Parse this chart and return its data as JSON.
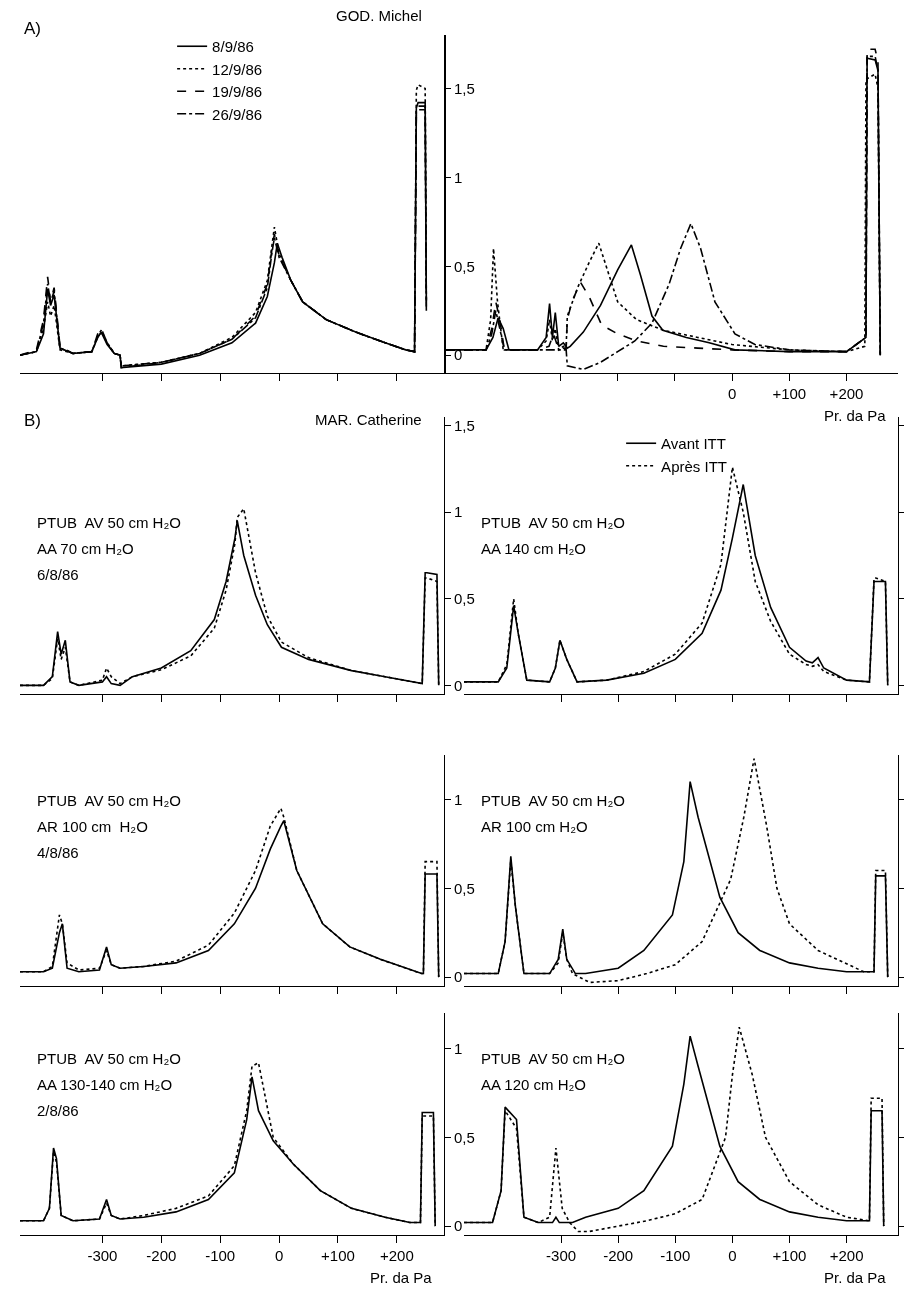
{
  "chart_data": [
    {
      "type": "line",
      "title": "A)",
      "subtitle": "GOD. Michel",
      "legend": "top",
      "tick_labels": "y",
      "xlim": [
        -440,
        280
      ],
      "ylim": [
        -0.1,
        1.8
      ],
      "xticks": [
        {
          "value": -300,
          "label": null
        },
        {
          "value": -200,
          "label": null
        },
        {
          "value": -100,
          "label": null
        },
        {
          "value": 0,
          "label": null
        },
        {
          "value": 100,
          "label": null
        },
        {
          "value": 200,
          "label": null
        }
      ],
      "yticks": [
        0,
        {
          "value": 0.5,
          "label": "0,5"
        },
        1,
        {
          "value": 1.5,
          "label": "1,5"
        }
      ],
      "series": [
        {
          "name": "8/9/86",
          "color": "#000000",
          "line_style": "solid",
          "x": [
            -440,
            -412,
            -400,
            -393,
            -388,
            -382,
            -372,
            -350,
            -318,
            -308,
            -302,
            -292,
            -280,
            -270,
            -268,
            -200,
            -135,
            -80,
            -40,
            -20,
            -8,
            -3,
            5,
            20,
            40,
            80,
            130,
            180,
            215,
            230,
            233,
            236,
            248,
            250
          ],
          "values": [
            0,
            0.02,
            0.12,
            0.37,
            0.28,
            0.34,
            0.04,
            0.01,
            0.02,
            0.1,
            0.13,
            0.06,
            0.01,
            0,
            -0.07,
            -0.05,
            0,
            0.07,
            0.18,
            0.33,
            0.52,
            0.63,
            0.55,
            0.42,
            0.3,
            0.2,
            0.13,
            0.07,
            0.03,
            0.02,
            1.39,
            1.42,
            1.42,
            0.3
          ]
        },
        {
          "name": "12/9/86",
          "color": "#000000",
          "line_style": "dotted",
          "x": [
            -440,
            -412,
            -400,
            -393,
            -388,
            -382,
            -372,
            -350,
            -318,
            -308,
            -302,
            -292,
            -280,
            -270,
            -268,
            -200,
            -135,
            -80,
            -40,
            -20,
            -12,
            -8,
            0,
            20,
            40,
            80,
            130,
            180,
            215,
            230,
            233,
            236,
            248,
            250
          ],
          "values": [
            0,
            0.02,
            0.15,
            0.3,
            0.22,
            0.28,
            0.03,
            0.01,
            0.02,
            0.11,
            0.14,
            0.07,
            0.01,
            0,
            -0.06,
            -0.04,
            0.01,
            0.1,
            0.24,
            0.42,
            0.62,
            0.72,
            0.57,
            0.42,
            0.3,
            0.2,
            0.13,
            0.07,
            0.03,
            0.02,
            1.49,
            1.52,
            1.5,
            0.3
          ]
        },
        {
          "name": "19/9/86",
          "color": "#000000",
          "line_style": "dashed",
          "x": [
            -440,
            -412,
            -400,
            -393,
            -388,
            -382,
            -372,
            -350,
            -318,
            -308,
            -302,
            -292,
            -280,
            -270,
            -268,
            -200,
            -135,
            -80,
            -40,
            -20,
            -12,
            -8,
            0,
            20,
            40,
            80,
            130,
            180,
            215,
            230,
            233,
            236,
            248,
            250
          ],
          "values": [
            0,
            0.03,
            0.2,
            0.44,
            0.3,
            0.38,
            0.05,
            0.01,
            0.02,
            0.12,
            0.15,
            0.07,
            0.01,
            0,
            -0.07,
            -0.04,
            0.01,
            0.09,
            0.22,
            0.4,
            0.6,
            0.68,
            0.56,
            0.42,
            0.3,
            0.2,
            0.13,
            0.07,
            0.03,
            0.02,
            1.38,
            1.4,
            1.4,
            0.25
          ]
        },
        {
          "name": "26/9/86",
          "color": "#000000",
          "line_style": "dashdot",
          "x": [
            -440,
            -412,
            -400,
            -393,
            -388,
            -382,
            -372,
            -350,
            -318,
            -308,
            -302,
            -292,
            -280,
            -270,
            -268,
            -200,
            -135,
            -80,
            -40,
            -20,
            -12,
            -8,
            0,
            20,
            40,
            80,
            130,
            180,
            215,
            230,
            233,
            236,
            248,
            250
          ],
          "values": [
            0,
            0.02,
            0.18,
            0.4,
            0.3,
            0.36,
            0.04,
            0.01,
            0.02,
            0.1,
            0.13,
            0.07,
            0.01,
            0,
            -0.06,
            -0.04,
            0.01,
            0.09,
            0.21,
            0.38,
            0.58,
            0.66,
            0.55,
            0.42,
            0.3,
            0.2,
            0.13,
            0.07,
            0.03,
            0.02,
            1.37,
            1.38,
            1.38,
            0.25
          ]
        }
      ]
    },
    {
      "type": "line",
      "xlabel": "Pr. da Pa",
      "tick_labels": "x",
      "xlim": [
        -500,
        290
      ],
      "ylim": [
        -0.1,
        1.8
      ],
      "xticks": [
        {
          "value": -300,
          "label": null
        },
        {
          "value": -200,
          "label": null
        },
        {
          "value": -100,
          "label": null
        },
        0,
        {
          "value": 100,
          "label": "+100"
        },
        {
          "value": 200,
          "label": "+200"
        }
      ],
      "series": [
        {
          "color": "#000000",
          "line_style": "solid",
          "x": [
            -500,
            -430,
            -418,
            -409,
            -400,
            -390,
            -340,
            -325,
            -319,
            -314,
            -309,
            -303,
            -295,
            -288,
            -283,
            -260,
            -230,
            -200,
            -176,
            -160,
            -140,
            -121,
            -80,
            -40,
            5,
            100,
            200,
            234,
            236,
            250,
            255,
            259
          ],
          "values": [
            0.03,
            0.03,
            0.1,
            0.21,
            0.15,
            0.03,
            0.03,
            0.1,
            0.29,
            0.1,
            0.24,
            0.05,
            0.07,
            0.04,
            0.05,
            0.13,
            0.28,
            0.48,
            0.62,
            0.45,
            0.22,
            0.14,
            0.1,
            0.07,
            0.03,
            0.02,
            0.02,
            0.1,
            1.67,
            1.66,
            1.6,
            0
          ]
        },
        {
          "color": "#000000",
          "line_style": "dotted",
          "x": [
            -500,
            -430,
            -422,
            -417,
            -410,
            -400,
            -340,
            -325,
            -319,
            -314,
            -309,
            -303,
            -295,
            -290,
            -288,
            -270,
            -250,
            -233,
            -220,
            -200,
            -167,
            -120,
            -60,
            0,
            100,
            200,
            232,
            234,
            250,
            255,
            259
          ],
          "values": [
            0.03,
            0.03,
            0.2,
            0.6,
            0.3,
            0.03,
            0.03,
            0.08,
            0.2,
            0.08,
            0.15,
            0.03,
            0.05,
            0.05,
            0.22,
            0.38,
            0.52,
            0.63,
            0.5,
            0.3,
            0.2,
            0.14,
            0.1,
            0.06,
            0.03,
            0.02,
            0.05,
            1.55,
            1.58,
            1.5,
            0
          ]
        },
        {
          "color": "#000000",
          "line_style": "dashed",
          "x": [
            -500,
            -430,
            -420,
            -413,
            -406,
            -398,
            -340,
            -320,
            -312,
            -304,
            -290,
            -288,
            -280,
            -265,
            -250,
            -228,
            -200,
            -167,
            -120,
            -60,
            0,
            100,
            200,
            234,
            236,
            250,
            255,
            259
          ],
          "values": [
            0.03,
            0.03,
            0.15,
            0.3,
            0.2,
            0.03,
            0.03,
            0.05,
            0.12,
            0.04,
            0.04,
            0.2,
            0.3,
            0.41,
            0.33,
            0.17,
            0.12,
            0.08,
            0.05,
            0.04,
            0.03,
            0.02,
            0.02,
            0.1,
            1.72,
            1.72,
            1.65,
            0
          ]
        },
        {
          "color": "#000000",
          "line_style": "dashdot",
          "x": [
            -500,
            -430,
            -420,
            -413,
            -406,
            -398,
            -340,
            -290,
            -288,
            -260,
            -230,
            -200,
            -170,
            -140,
            -110,
            -90,
            -72,
            -55,
            -30,
            5,
            40,
            100,
            200,
            234,
            236,
            250,
            255,
            259
          ],
          "values": [
            0.03,
            0.03,
            0.12,
            0.25,
            0.15,
            0.03,
            0.03,
            0.03,
            -0.06,
            -0.08,
            -0.04,
            0.02,
            0.08,
            0.18,
            0.4,
            0.6,
            0.74,
            0.6,
            0.3,
            0.12,
            0.06,
            0.03,
            0.02,
            0.1,
            1.68,
            1.68,
            1.6,
            0
          ]
        }
      ]
    },
    {
      "type": "line",
      "title": "B)",
      "subtitle": "MAR. Catherine",
      "tick_labels": "y",
      "xlim": [
        -440,
        280
      ],
      "ylim": [
        -0.05,
        1.55
      ],
      "annotations": [
        "PTUB  AV 50 cm H₂O",
        "AA 70 cm H₂O",
        "6/8/86"
      ],
      "xticks": [
        {
          "value": -300,
          "label": null
        },
        {
          "value": -200,
          "label": null
        },
        {
          "value": -100,
          "label": null
        },
        {
          "value": 0,
          "label": null
        },
        {
          "value": 100,
          "label": null
        },
        {
          "value": 200,
          "label": null
        }
      ],
      "yticks": [
        0,
        {
          "value": 0.5,
          "label": "0,5"
        },
        1,
        {
          "value": 1.5,
          "label": "1,5"
        }
      ],
      "series": [
        {
          "color": "#000000",
          "line_style": "solid",
          "x": [
            -440,
            -400,
            -385,
            -376,
            -370,
            -363,
            -355,
            -340,
            -300,
            -293,
            -285,
            -270,
            -249,
            -200,
            -150,
            -110,
            -90,
            -75,
            -71,
            -60,
            -40,
            -20,
            4,
            50,
            123,
            180,
            243,
            248,
            251,
            268,
            271
          ],
          "values": [
            0,
            0,
            0.05,
            0.31,
            0.18,
            0.26,
            0.02,
            0,
            0.02,
            0.05,
            0.01,
            0,
            0.05,
            0.1,
            0.2,
            0.38,
            0.6,
            0.85,
            0.95,
            0.75,
            0.52,
            0.35,
            0.22,
            0.15,
            0.085,
            0.05,
            0.01,
            0.65,
            0.65,
            0.64,
            0
          ]
        },
        {
          "color": "#000000",
          "line_style": "dotted",
          "x": [
            -440,
            -400,
            -385,
            -376,
            -370,
            -363,
            -355,
            -340,
            -300,
            -293,
            -285,
            -270,
            -249,
            -200,
            -150,
            -110,
            -90,
            -75,
            -71,
            -60,
            -40,
            -20,
            4,
            50,
            123,
            180,
            243,
            248,
            251,
            268,
            271
          ],
          "values": [
            0,
            0,
            0.04,
            0.27,
            0.15,
            0.22,
            0.02,
            0,
            0.03,
            0.1,
            0.05,
            0.01,
            0.05,
            0.09,
            0.17,
            0.33,
            0.55,
            0.82,
            0.97,
            1.02,
            0.65,
            0.4,
            0.25,
            0.16,
            0.085,
            0.05,
            0.01,
            0.62,
            0.62,
            0.6,
            0
          ]
        }
      ]
    },
    {
      "type": "line",
      "legend": "top",
      "tick_labels": false,
      "xlim": [
        -470,
        290
      ],
      "ylim": [
        -0.05,
        1.55
      ],
      "annotations": [
        "PTUB  AV 50 cm H₂O",
        "AA 140 cm H₂O"
      ],
      "xticks": [
        {
          "value": -300,
          "label": null
        },
        {
          "value": -200,
          "label": null
        },
        {
          "value": -100,
          "label": null
        },
        {
          "value": 0,
          "label": null
        },
        {
          "value": 100,
          "label": null
        },
        {
          "value": 200,
          "label": null
        }
      ],
      "yticks": [
        {
          "value": 0,
          "label": null
        },
        {
          "value": 0.5,
          "label": null
        },
        {
          "value": 1,
          "label": null
        },
        {
          "value": 1.5,
          "label": null
        }
      ],
      "series": [
        {
          "name": "Avant ITT",
          "color": "#000000",
          "line_style": "solid",
          "x": [
            -470,
            -410,
            -395,
            -383,
            -375,
            -360,
            -320,
            -310,
            -302,
            -290,
            -272,
            -220,
            -155,
            -100,
            -53,
            -20,
            0,
            19,
            40,
            67,
            100,
            129,
            140,
            150,
            160,
            200,
            240,
            248,
            251,
            268,
            272
          ],
          "values": [
            0.02,
            0.02,
            0.1,
            0.46,
            0.3,
            0.03,
            0.02,
            0.1,
            0.26,
            0.15,
            0.02,
            0.03,
            0.07,
            0.15,
            0.3,
            0.55,
            0.85,
            1.16,
            0.75,
            0.45,
            0.22,
            0.14,
            0.13,
            0.16,
            0.1,
            0.03,
            0.02,
            0.6,
            0.6,
            0.6,
            0
          ]
        },
        {
          "name": "Après ITT",
          "color": "#000000",
          "line_style": "dotted",
          "x": [
            -470,
            -410,
            -395,
            -383,
            -375,
            -360,
            -320,
            -310,
            -302,
            -290,
            -272,
            -220,
            -155,
            -100,
            -53,
            -20,
            0,
            19,
            40,
            67,
            100,
            129,
            140,
            150,
            160,
            200,
            240,
            248,
            251,
            268,
            272
          ],
          "values": [
            0.02,
            0.02,
            0.12,
            0.5,
            0.3,
            0.03,
            0.02,
            0.1,
            0.26,
            0.15,
            0.02,
            0.03,
            0.08,
            0.18,
            0.36,
            0.7,
            1.26,
            1.0,
            0.6,
            0.37,
            0.18,
            0.12,
            0.11,
            0.12,
            0.08,
            0.03,
            0.02,
            0.62,
            0.62,
            0.6,
            0
          ]
        }
      ]
    },
    {
      "type": "line",
      "tick_labels": "y",
      "xlim": [
        -440,
        280
      ],
      "ylim": [
        -0.05,
        1.25
      ],
      "annotations": [
        "PTUB  AV 50 cm H₂O",
        "AR 100 cm  H₂O",
        "4/8/86"
      ],
      "xticks": [
        {
          "value": -300,
          "label": null
        },
        {
          "value": -200,
          "label": null
        },
        {
          "value": -100,
          "label": null
        },
        {
          "value": 0,
          "label": null
        },
        {
          "value": 100,
          "label": null
        },
        {
          "value": 200,
          "label": null
        }
      ],
      "yticks": [
        0,
        {
          "value": 0.5,
          "label": "0,5"
        },
        1
      ],
      "series": [
        {
          "color": "#000000",
          "line_style": "solid",
          "x": [
            -440,
            -400,
            -385,
            -373,
            -368,
            -360,
            -340,
            -305,
            -293,
            -285,
            -270,
            -230,
            -175,
            -120,
            -76,
            -40,
            -15,
            3,
            8,
            30,
            74,
            120,
            172,
            242,
            245,
            248,
            268,
            271
          ],
          "values": [
            0.03,
            0.03,
            0.05,
            0.25,
            0.3,
            0.05,
            0.03,
            0.04,
            0.17,
            0.07,
            0.05,
            0.06,
            0.08,
            0.15,
            0.3,
            0.5,
            0.72,
            0.85,
            0.88,
            0.6,
            0.3,
            0.17,
            0.1,
            0.02,
            0.02,
            0.58,
            0.58,
            0
          ]
        },
        {
          "color": "#000000",
          "line_style": "dotted",
          "x": [
            -440,
            -400,
            -385,
            -373,
            -368,
            -360,
            -340,
            -305,
            -293,
            -285,
            -270,
            -230,
            -175,
            -120,
            -76,
            -40,
            -15,
            3,
            8,
            30,
            74,
            120,
            172,
            242,
            245,
            248,
            268,
            271
          ],
          "values": [
            0.03,
            0.03,
            0.06,
            0.35,
            0.3,
            0.08,
            0.04,
            0.05,
            0.15,
            0.07,
            0.05,
            0.06,
            0.09,
            0.18,
            0.36,
            0.6,
            0.85,
            0.95,
            0.9,
            0.6,
            0.3,
            0.17,
            0.1,
            0.02,
            0.02,
            0.65,
            0.65,
            0
          ]
        }
      ]
    },
    {
      "type": "line",
      "tick_labels": false,
      "xlim": [
        -470,
        290
      ],
      "ylim": [
        -0.05,
        1.25
      ],
      "annotations": [
        "PTUB  AV 50 cm H₂O",
        "AR 100 cm H₂O"
      ],
      "xticks": [
        {
          "value": -300,
          "label": null
        },
        {
          "value": -200,
          "label": null
        },
        {
          "value": -100,
          "label": null
        },
        {
          "value": 0,
          "label": null
        },
        {
          "value": 100,
          "label": null
        },
        {
          "value": 200,
          "label": null
        }
      ],
      "yticks": [
        {
          "value": 0,
          "label": null
        },
        {
          "value": 0.5,
          "label": null
        },
        {
          "value": 1,
          "label": null
        }
      ],
      "series": [
        {
          "color": "#000000",
          "line_style": "solid",
          "x": [
            -470,
            -410,
            -398,
            -388,
            -380,
            -365,
            -320,
            -305,
            -297,
            -290,
            -275,
            -257,
            -200,
            -155,
            -105,
            -85,
            -74,
            -60,
            -22,
            10,
            48,
            100,
            150,
            200,
            248,
            251,
            268,
            272
          ],
          "values": [
            0.02,
            0.02,
            0.2,
            0.68,
            0.4,
            0.02,
            0.02,
            0.1,
            0.27,
            0.1,
            0.02,
            0.02,
            0.05,
            0.15,
            0.35,
            0.65,
            1.1,
            0.9,
            0.45,
            0.25,
            0.15,
            0.08,
            0.05,
            0.03,
            0.03,
            0.57,
            0.57,
            0
          ]
        },
        {
          "color": "#000000",
          "line_style": "dotted",
          "x": [
            -470,
            -410,
            -398,
            -388,
            -380,
            -365,
            -320,
            -305,
            -297,
            -290,
            -280,
            -250,
            -200,
            -150,
            -100,
            -53,
            -3,
            20,
            38,
            60,
            78,
            100,
            150,
            230,
            248,
            251,
            268,
            272
          ],
          "values": [
            0.02,
            0.02,
            0.2,
            0.66,
            0.4,
            0.02,
            0.02,
            0.08,
            0.25,
            0.1,
            0.02,
            -0.03,
            -0.02,
            0.02,
            0.07,
            0.2,
            0.55,
            0.9,
            1.23,
            0.85,
            0.5,
            0.3,
            0.15,
            0.03,
            0.03,
            0.6,
            0.6,
            0
          ]
        }
      ]
    },
    {
      "type": "line",
      "xlabel": "Pr. da Pa",
      "xlim": [
        -440,
        280
      ],
      "ylim": [
        -0.05,
        1.2
      ],
      "annotations": [
        "PTUB  AV 50 cm H₂O",
        "AA 130-140 cm H₂O",
        "2/8/86"
      ],
      "xticks": [
        -300,
        -200,
        -100,
        0,
        {
          "value": 100,
          "label": "+100"
        },
        {
          "value": 200,
          "label": "+200"
        }
      ],
      "yticks": [
        0,
        {
          "value": 0.5,
          "label": "0,5"
        },
        1
      ],
      "series": [
        {
          "color": "#000000",
          "line_style": "solid",
          "x": [
            -440,
            -400,
            -390,
            -383,
            -378,
            -370,
            -350,
            -305,
            -293,
            -285,
            -270,
            -230,
            -175,
            -120,
            -76,
            -55,
            -46,
            -35,
            -10,
            24,
            70,
            123,
            180,
            222,
            240,
            243,
            262,
            265
          ],
          "values": [
            0.03,
            0.03,
            0.1,
            0.44,
            0.38,
            0.06,
            0.03,
            0.04,
            0.15,
            0.06,
            0.04,
            0.05,
            0.08,
            0.15,
            0.3,
            0.6,
            0.84,
            0.65,
            0.48,
            0.35,
            0.2,
            0.1,
            0.05,
            0.02,
            0.02,
            0.64,
            0.64,
            0
          ]
        },
        {
          "color": "#000000",
          "line_style": "dotted",
          "x": [
            -440,
            -400,
            -390,
            -383,
            -378,
            -370,
            -350,
            -305,
            -293,
            -285,
            -270,
            -230,
            -175,
            -120,
            -76,
            -55,
            -46,
            -35,
            -10,
            24,
            70,
            123,
            180,
            222,
            240,
            243,
            262,
            265
          ],
          "values": [
            0.03,
            0.03,
            0.1,
            0.42,
            0.36,
            0.06,
            0.03,
            0.04,
            0.13,
            0.06,
            0.04,
            0.06,
            0.1,
            0.17,
            0.34,
            0.65,
            0.9,
            0.92,
            0.5,
            0.35,
            0.2,
            0.1,
            0.05,
            0.02,
            0.02,
            0.62,
            0.62,
            0
          ]
        }
      ]
    },
    {
      "type": "line",
      "xlabel": "Pr. da Pa",
      "tick_labels": "x",
      "xlim": [
        -470,
        290
      ],
      "ylim": [
        -0.05,
        1.2
      ],
      "annotations": [
        "PTUB  AV 50 cm H₂O",
        "AA 120 cm H₂O"
      ],
      "xticks": [
        -300,
        -200,
        -100,
        0,
        {
          "value": 100,
          "label": "+100"
        },
        {
          "value": 200,
          "label": "+200"
        }
      ],
      "yticks": [
        {
          "value": 0,
          "label": null
        },
        {
          "value": 0.5,
          "label": null
        },
        {
          "value": 1,
          "label": null
        }
      ],
      "series": [
        {
          "color": "#000000",
          "line_style": "solid",
          "x": [
            -470,
            -420,
            -405,
            -398,
            -378,
            -365,
            -340,
            -315,
            -309,
            -303,
            -280,
            -257,
            -200,
            -155,
            -105,
            -85,
            -74,
            -60,
            -22,
            10,
            48,
            100,
            150,
            200,
            240,
            243,
            262,
            265
          ],
          "values": [
            0.02,
            0.02,
            0.2,
            0.67,
            0.6,
            0.05,
            0.02,
            0.02,
            0.05,
            0.02,
            0.02,
            0.05,
            0.1,
            0.2,
            0.45,
            0.8,
            1.07,
            0.9,
            0.45,
            0.25,
            0.15,
            0.08,
            0.05,
            0.03,
            0.03,
            0.65,
            0.65,
            0
          ]
        },
        {
          "color": "#000000",
          "line_style": "dotted",
          "x": [
            -470,
            -420,
            -405,
            -398,
            -378,
            -365,
            -340,
            -320,
            -309,
            -298,
            -285,
            -270,
            -250,
            -200,
            -150,
            -100,
            -53,
            -12,
            0,
            12,
            35,
            58,
            100,
            150,
            200,
            240,
            243,
            262,
            265
          ],
          "values": [
            0.02,
            0.02,
            0.2,
            0.65,
            0.55,
            0.05,
            0.02,
            0.05,
            0.44,
            0.1,
            0.02,
            -0.03,
            -0.03,
            0.0,
            0.03,
            0.07,
            0.15,
            0.5,
            0.85,
            1.12,
            0.85,
            0.5,
            0.25,
            0.12,
            0.05,
            0.03,
            0.72,
            0.72,
            0
          ]
        }
      ]
    }
  ]
}
